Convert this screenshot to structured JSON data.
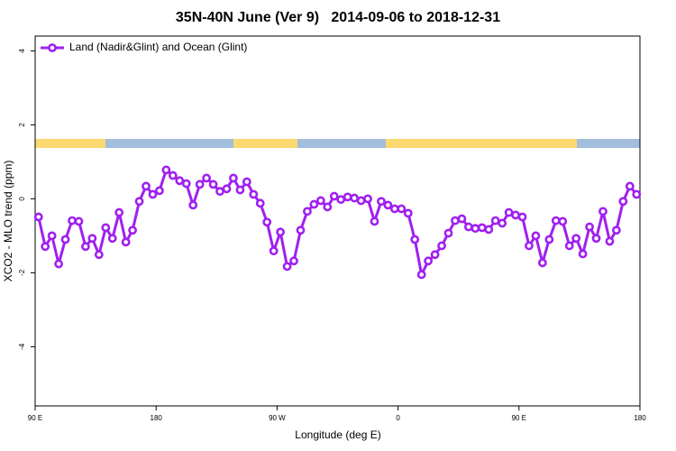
{
  "chart_data": {
    "type": "line",
    "title": "35N-40N June (Ver 9)   2014-09-06 to 2018-12-31",
    "x_label": "Longitude (deg E)",
    "y_label": "XCO2 - MLO trend (ppm)",
    "x": [
      92.5,
      97.5,
      102.5,
      107.5,
      112.5,
      117.5,
      122.5,
      127.5,
      132.5,
      137.5,
      142.5,
      147.5,
      152.5,
      157.5,
      162.5,
      167.5,
      172.5,
      177.5,
      182.5,
      187.5,
      192.5,
      197.5,
      202.5,
      207.5,
      212.5,
      217.5,
      222.5,
      227.5,
      232.5,
      237.5,
      242.5,
      247.5,
      252.5,
      257.5,
      262.5,
      267.5,
      272.5,
      277.5,
      282.5,
      287.5,
      292.5,
      297.5,
      302.5,
      307.5,
      312.5,
      317.5,
      322.5,
      327.5,
      332.5,
      337.5,
      342.5,
      347.5,
      352.5,
      357.5,
      362.5,
      367.5,
      372.5,
      377.5,
      382.5,
      387.5,
      392.5,
      397.5,
      402.5,
      407.5,
      412.5,
      417.5,
      422.5,
      427.5,
      432.5,
      437.5,
      442.5,
      447.5,
      452.5,
      457.5,
      462.5,
      467.5,
      472.5,
      477.5,
      482.5,
      487.5,
      492.5,
      497.5,
      502.5,
      507.5,
      512.5,
      517.5,
      522.5,
      527.5,
      532.5,
      537.5
    ],
    "series": [
      {
        "name": "Land (Nadir&Glint) and Ocean (Glint)",
        "color": "#a020f0",
        "values": [
          -0.49,
          -1.29,
          -1.0,
          -1.76,
          -1.1,
          -0.59,
          -0.61,
          -1.29,
          -1.07,
          -1.51,
          -0.78,
          -1.07,
          -0.37,
          -1.17,
          -0.85,
          -0.07,
          0.34,
          0.12,
          0.22,
          0.78,
          0.63,
          0.49,
          0.41,
          -0.17,
          0.39,
          0.56,
          0.39,
          0.2,
          0.27,
          0.56,
          0.24,
          0.46,
          0.12,
          -0.12,
          -0.63,
          -1.41,
          -0.9,
          -1.83,
          -1.68,
          -0.85,
          -0.34,
          -0.15,
          -0.05,
          -0.22,
          0.07,
          -0.02,
          0.05,
          0.02,
          -0.05,
          0,
          -0.61,
          -0.07,
          -0.17,
          -0.27,
          -0.27,
          -0.39,
          -1.1,
          -2.05,
          -1.68,
          -1.51,
          -1.27,
          -0.93,
          -0.59,
          -0.54,
          -0.76,
          -0.8,
          -0.78,
          -0.83,
          -0.59,
          -0.66,
          -0.37,
          -0.44,
          -0.49,
          -1.27,
          -1.0,
          -1.73,
          -1.1,
          -0.59,
          -0.61,
          -1.27,
          -1.07,
          -1.49,
          -0.76,
          -1.07,
          -0.34,
          -1.15,
          -0.85,
          -0.07,
          0.34,
          0.12
        ]
      }
    ],
    "xlim": [
      90,
      540
    ],
    "xticks": [
      {
        "value": 90,
        "label": "90 E"
      },
      180,
      {
        "value": 270,
        "label": "90 W"
      },
      {
        "value": 360,
        "label": "0"
      },
      {
        "value": 450,
        "label": "90 E"
      },
      {
        "value": 540,
        "label": "180"
      }
    ],
    "ylim": [
      -5.6,
      4.4
    ],
    "yticks": [
      -4,
      -2,
      0,
      2,
      4
    ],
    "grid": false,
    "legend": "top-left"
  }
}
